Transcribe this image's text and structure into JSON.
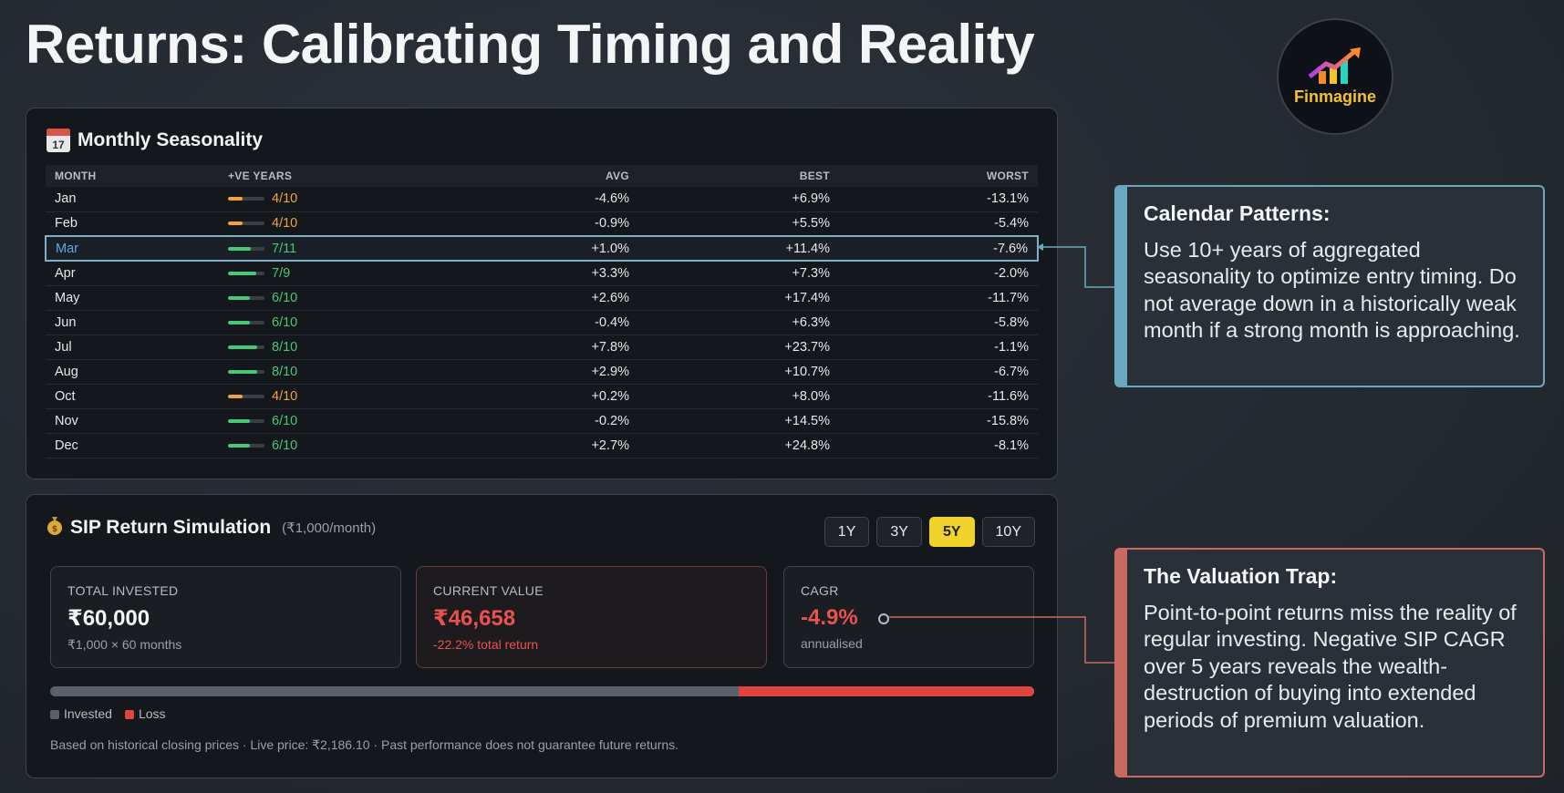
{
  "title": "Returns: Calibrating Timing and Reality",
  "logo": {
    "text": "Finmagine",
    "icon": "rising-chart-icon"
  },
  "seasonality": {
    "title": "Monthly Seasonality",
    "icon": "calendar-icon",
    "calendar_day": "17",
    "headers": {
      "month": "MONTH",
      "years": "+VE YEARS",
      "avg": "AVG",
      "best": "BEST",
      "worst": "WORST"
    },
    "rows": [
      {
        "month": "Jan",
        "years": "4/10",
        "avg": "-4.6%",
        "best": "+6.9%",
        "worst": "-13.1%"
      },
      {
        "month": "Feb",
        "years": "4/10",
        "avg": "-0.9%",
        "best": "+5.5%",
        "worst": "-5.4%"
      },
      {
        "month": "Mar",
        "years": "7/11",
        "avg": "+1.0%",
        "best": "+11.4%",
        "worst": "-7.6%"
      },
      {
        "month": "Apr",
        "years": "7/9",
        "avg": "+3.3%",
        "best": "+7.3%",
        "worst": "-2.0%"
      },
      {
        "month": "May",
        "years": "6/10",
        "avg": "+2.6%",
        "best": "+17.4%",
        "worst": "-11.7%"
      },
      {
        "month": "Jun",
        "years": "6/10",
        "avg": "-0.4%",
        "best": "+6.3%",
        "worst": "-5.8%"
      },
      {
        "month": "Jul",
        "years": "8/10",
        "avg": "+7.8%",
        "best": "+23.7%",
        "worst": "-1.1%"
      },
      {
        "month": "Aug",
        "years": "8/10",
        "avg": "+2.9%",
        "best": "+10.7%",
        "worst": "-6.7%"
      },
      {
        "month": "Oct",
        "years": "4/10",
        "avg": "+0.2%",
        "best": "+8.0%",
        "worst": "-11.6%"
      },
      {
        "month": "Nov",
        "years": "6/10",
        "avg": "-0.2%",
        "best": "+14.5%",
        "worst": "-15.8%"
      },
      {
        "month": "Dec",
        "years": "6/10",
        "avg": "+2.7%",
        "best": "+24.8%",
        "worst": "-8.1%"
      }
    ],
    "highlighted_month": "Mar"
  },
  "callouts": {
    "calendar": {
      "title": "Calendar Patterns:",
      "body": "Use 10+ years of aggregated seasonality to optimize entry timing. Do not average down in a historically weak month if a strong month is approaching."
    },
    "valuation": {
      "title": "The Valuation Trap:",
      "body": "Point-to-point returns miss the reality of regular investing. Negative SIP CAGR over 5 years reveals the wealth-destruction of buying into extended periods of premium valuation."
    }
  },
  "sip": {
    "title": "SIP Return Simulation",
    "subtitle": "(₹1,000/month)",
    "icon": "money-bag-icon",
    "timeframes": [
      "1Y",
      "3Y",
      "5Y",
      "10Y"
    ],
    "active_timeframe": "5Y",
    "total_invested": {
      "label": "TOTAL INVESTED",
      "value": "₹60,000",
      "sub": "₹1,000 × 60 months"
    },
    "current_value": {
      "label": "CURRENT VALUE",
      "value": "₹46,658",
      "sub": "-22.2% total return"
    },
    "cagr": {
      "label": "CAGR",
      "value": "-4.9%",
      "sub": "annualised"
    },
    "invested_fraction": 0.7,
    "loss_fraction": 0.3,
    "legend": {
      "invested": "Invested",
      "loss": "Loss"
    },
    "note": "Based on historical closing prices · Live price: ₹2,186.10 · Past performance does not guarantee future returns."
  },
  "colors": {
    "positive": "#48c774",
    "negative": "#e8524f",
    "warning": "#f0a33a",
    "accent_yellow": "#f0d22b",
    "callout_blue": "#6aa8c0",
    "callout_red": "#c86a60"
  }
}
